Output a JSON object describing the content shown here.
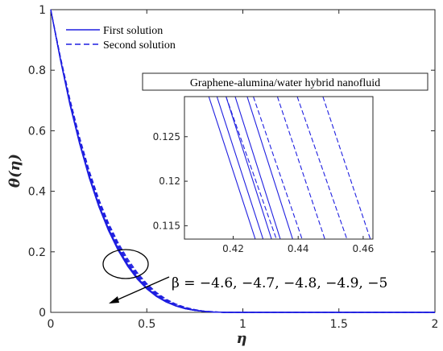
{
  "chart_data": {
    "type": "line",
    "xlabel": "η",
    "ylabel": "θ(η)",
    "xlim": [
      0,
      2
    ],
    "ylim": [
      0,
      1
    ],
    "xticks": [
      "0",
      "0.5",
      "1",
      "1.5",
      "2"
    ],
    "yticks": [
      "0",
      "0.2",
      "0.4",
      "0.6",
      "0.8",
      "1"
    ],
    "grid": false,
    "legend_position": "top-left",
    "color": "#1f1fe0",
    "series": [
      {
        "name": "First solution",
        "style": "solid",
        "beta": -4.6,
        "x": [
          0,
          0.05,
          0.1,
          0.15,
          0.2,
          0.25,
          0.3,
          0.35,
          0.4,
          0.45,
          0.5,
          0.55,
          0.6,
          0.65,
          0.7,
          0.75,
          0.8,
          0.85,
          0.9,
          1.0,
          1.2,
          1.5,
          2.0
        ],
        "y": [
          1,
          0.835,
          0.685,
          0.556,
          0.444,
          0.349,
          0.27,
          0.205,
          0.152,
          0.11,
          0.077,
          0.052,
          0.034,
          0.021,
          0.012,
          0.006,
          0.003,
          0.001,
          0,
          0,
          0,
          0,
          0
        ]
      },
      {
        "name": "First solution",
        "style": "solid",
        "beta": -4.7,
        "x": [
          0,
          0.05,
          0.1,
          0.15,
          0.2,
          0.25,
          0.3,
          0.35,
          0.4,
          0.45,
          0.5,
          0.55,
          0.6,
          0.65,
          0.7,
          0.75,
          0.8,
          0.85,
          0.9,
          1.0,
          1.2,
          1.5,
          2.0
        ],
        "y": [
          1,
          0.836,
          0.687,
          0.558,
          0.446,
          0.351,
          0.272,
          0.207,
          0.154,
          0.111,
          0.078,
          0.053,
          0.035,
          0.021,
          0.012,
          0.006,
          0.003,
          0.001,
          0,
          0,
          0,
          0,
          0
        ]
      },
      {
        "name": "First solution",
        "style": "solid",
        "beta": -4.8,
        "x": [
          0,
          0.05,
          0.1,
          0.15,
          0.2,
          0.25,
          0.3,
          0.35,
          0.4,
          0.45,
          0.5,
          0.55,
          0.6,
          0.65,
          0.7,
          0.75,
          0.8,
          0.85,
          0.9,
          1.0,
          1.2,
          1.5,
          2.0
        ],
        "y": [
          1,
          0.837,
          0.689,
          0.56,
          0.448,
          0.353,
          0.274,
          0.209,
          0.155,
          0.113,
          0.079,
          0.054,
          0.035,
          0.022,
          0.012,
          0.006,
          0.003,
          0.001,
          0,
          0,
          0,
          0,
          0
        ]
      },
      {
        "name": "First solution",
        "style": "solid",
        "beta": -4.9,
        "x": [
          0,
          0.05,
          0.1,
          0.15,
          0.2,
          0.25,
          0.3,
          0.35,
          0.4,
          0.45,
          0.5,
          0.55,
          0.6,
          0.65,
          0.7,
          0.75,
          0.8,
          0.85,
          0.9,
          1.0,
          1.2,
          1.5,
          2.0
        ],
        "y": [
          1,
          0.838,
          0.691,
          0.562,
          0.45,
          0.355,
          0.276,
          0.211,
          0.157,
          0.114,
          0.08,
          0.055,
          0.036,
          0.022,
          0.013,
          0.007,
          0.003,
          0.001,
          0,
          0,
          0,
          0,
          0
        ]
      },
      {
        "name": "First solution",
        "style": "solid",
        "beta": -5,
        "x": [
          0,
          0.05,
          0.1,
          0.15,
          0.2,
          0.25,
          0.3,
          0.35,
          0.4,
          0.45,
          0.5,
          0.55,
          0.6,
          0.65,
          0.7,
          0.75,
          0.8,
          0.85,
          0.9,
          1.0,
          1.2,
          1.5,
          2.0
        ],
        "y": [
          1,
          0.839,
          0.693,
          0.564,
          0.452,
          0.357,
          0.278,
          0.213,
          0.159,
          0.116,
          0.081,
          0.056,
          0.037,
          0.023,
          0.013,
          0.007,
          0.003,
          0.001,
          0,
          0,
          0,
          0,
          0
        ]
      },
      {
        "name": "Second solution",
        "style": "dashed",
        "beta": -4.6,
        "x": [
          0,
          0.05,
          0.1,
          0.15,
          0.2,
          0.25,
          0.3,
          0.35,
          0.4,
          0.45,
          0.5,
          0.55,
          0.6,
          0.65,
          0.7,
          0.75,
          0.8,
          0.85,
          0.9,
          1.0,
          1.2,
          1.5,
          2.0
        ],
        "y": [
          1,
          0.838,
          0.69,
          0.561,
          0.449,
          0.354,
          0.275,
          0.21,
          0.157,
          0.115,
          0.081,
          0.056,
          0.037,
          0.023,
          0.013,
          0.007,
          0.003,
          0.001,
          0,
          0,
          0,
          0,
          0
        ]
      },
      {
        "name": "Second solution",
        "style": "dashed",
        "beta": -4.7,
        "x": [
          0,
          0.05,
          0.1,
          0.15,
          0.2,
          0.25,
          0.3,
          0.35,
          0.4,
          0.45,
          0.5,
          0.55,
          0.6,
          0.65,
          0.7,
          0.75,
          0.8,
          0.85,
          0.9,
          1.0,
          1.2,
          1.5,
          2.0
        ],
        "y": [
          1,
          0.84,
          0.693,
          0.565,
          0.453,
          0.358,
          0.279,
          0.214,
          0.161,
          0.118,
          0.084,
          0.058,
          0.038,
          0.024,
          0.014,
          0.007,
          0.003,
          0.001,
          0,
          0,
          0,
          0,
          0
        ]
      },
      {
        "name": "Second solution",
        "style": "dashed",
        "beta": -4.8,
        "x": [
          0,
          0.05,
          0.1,
          0.15,
          0.2,
          0.25,
          0.3,
          0.35,
          0.4,
          0.45,
          0.5,
          0.55,
          0.6,
          0.65,
          0.7,
          0.75,
          0.8,
          0.85,
          0.9,
          1.0,
          1.2,
          1.5,
          2.0
        ],
        "y": [
          1,
          0.842,
          0.697,
          0.569,
          0.458,
          0.363,
          0.284,
          0.219,
          0.166,
          0.122,
          0.087,
          0.06,
          0.04,
          0.025,
          0.015,
          0.008,
          0.004,
          0.001,
          0,
          0,
          0,
          0,
          0
        ]
      },
      {
        "name": "Second solution",
        "style": "dashed",
        "beta": -4.9,
        "x": [
          0,
          0.05,
          0.1,
          0.15,
          0.2,
          0.25,
          0.3,
          0.35,
          0.4,
          0.45,
          0.5,
          0.55,
          0.6,
          0.65,
          0.7,
          0.75,
          0.8,
          0.85,
          0.9,
          1.0,
          1.2,
          1.5,
          2.0
        ],
        "y": [
          1,
          0.844,
          0.701,
          0.574,
          0.463,
          0.369,
          0.29,
          0.225,
          0.171,
          0.127,
          0.091,
          0.063,
          0.042,
          0.027,
          0.016,
          0.009,
          0.004,
          0.002,
          0,
          0,
          0,
          0,
          0
        ]
      },
      {
        "name": "Second solution",
        "style": "dashed",
        "beta": -5,
        "x": [
          0,
          0.05,
          0.1,
          0.15,
          0.2,
          0.25,
          0.3,
          0.35,
          0.4,
          0.45,
          0.5,
          0.55,
          0.6,
          0.65,
          0.7,
          0.75,
          0.8,
          0.85,
          0.9,
          1.0,
          1.2,
          1.5,
          2.0
        ],
        "y": [
          1,
          0.846,
          0.705,
          0.579,
          0.469,
          0.375,
          0.296,
          0.231,
          0.177,
          0.132,
          0.095,
          0.066,
          0.044,
          0.028,
          0.017,
          0.009,
          0.004,
          0.002,
          0,
          0,
          0,
          0,
          0
        ]
      }
    ],
    "inset": {
      "title": "Graphene-alumina/water hybrid nanofluid",
      "xlim": [
        0.405,
        0.463
      ],
      "ylim": [
        0.1135,
        0.1295
      ],
      "xticks": [
        "0.42",
        "0.44",
        "0.46"
      ],
      "yticks": [
        "0.115",
        "0.12",
        "0.125"
      ],
      "lines": [
        {
          "style": "solid",
          "x_top": 0.4125,
          "x_bottom": 0.4268
        },
        {
          "style": "solid",
          "x_top": 0.415,
          "x_bottom": 0.4292
        },
        {
          "style": "solid",
          "x_top": 0.4178,
          "x_bottom": 0.4318
        },
        {
          "style": "solid",
          "x_top": 0.4206,
          "x_bottom": 0.4345
        },
        {
          "style": "solid",
          "x_top": 0.4243,
          "x_bottom": 0.4383
        },
        {
          "style": "dashed",
          "x_top": 0.4178,
          "x_bottom": 0.4333
        },
        {
          "style": "dashed",
          "x_top": 0.4262,
          "x_bottom": 0.4412
        },
        {
          "style": "dashed",
          "x_top": 0.4336,
          "x_bottom": 0.4482
        },
        {
          "style": "dashed",
          "x_top": 0.4397,
          "x_bottom": 0.455
        },
        {
          "style": "dashed",
          "x_top": 0.4476,
          "x_bottom": 0.4622
        }
      ]
    },
    "annotation": "β = −4.6, −4.7, −4.8, −4.9, −5"
  }
}
